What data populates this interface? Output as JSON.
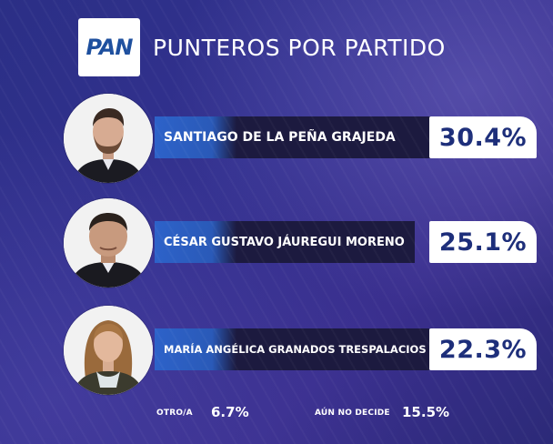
{
  "header": {
    "logo_text": "PAN",
    "title": "PUNTEROS POR PARTIDO"
  },
  "candidates": [
    {
      "name": "SANTIAGO DE LA PEÑA GRAJEDA",
      "percent": "30.4%"
    },
    {
      "name": "CÉSAR GUSTAVO JÁUREGUI MORENO",
      "percent": "25.1%"
    },
    {
      "name": "MARÍA ANGÉLICA GRANADOS TRESPALACIOS",
      "percent": "22.3%"
    }
  ],
  "footer": {
    "other_label": "OTRO/A",
    "other_value": "6.7%",
    "undecided_label": "AÚN NO DECIDE",
    "undecided_value": "15.5%"
  },
  "colors": {
    "background": "#2b2f86",
    "name_bar": "#1c1a3f",
    "name_bar_accent": "#2d62c9",
    "percent_text": "#1d2e7a",
    "logo_text": "#1d4f9e"
  }
}
